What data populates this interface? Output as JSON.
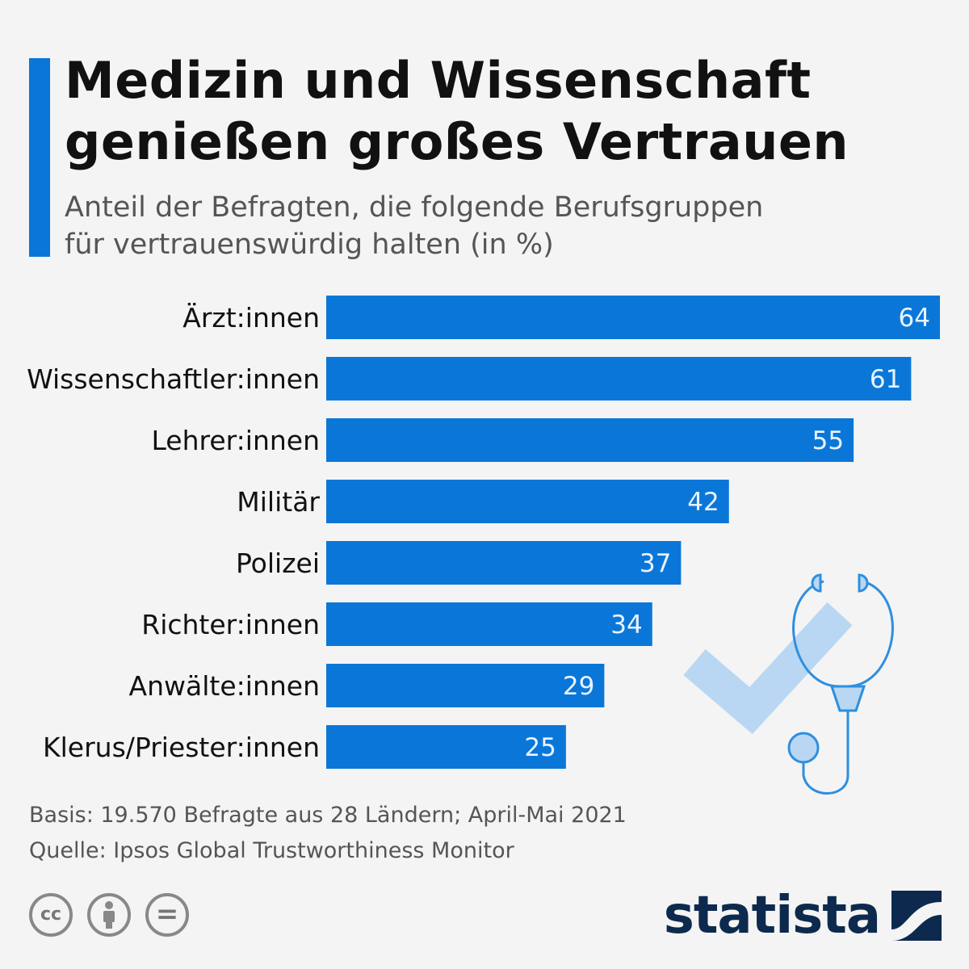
{
  "header": {
    "title_line1": "Medizin und Wissenschaft",
    "title_line2": "genießen großes Vertrauen",
    "subtitle_line1": "Anteil der Befragten, die folgende Berufsgruppen",
    "subtitle_line2": "für vertrauenswürdig halten (in %)"
  },
  "chart_data": {
    "type": "bar",
    "orientation": "horizontal",
    "title": "Medizin und Wissenschaft genießen großes Vertrauen",
    "subtitle": "Anteil der Befragten, die folgende Berufsgruppen für vertrauenswürdig halten (in %)",
    "categories": [
      "Ärzt:innen",
      "Wissenschaftler:innen",
      "Lehrer:innen",
      "Militär",
      "Polizei",
      "Richter:innen",
      "Anwälte:innen",
      "Klerus/Priester:innen"
    ],
    "values": [
      64,
      61,
      55,
      42,
      37,
      34,
      29,
      25
    ],
    "xlim": [
      0,
      64
    ],
    "grid": false,
    "data_labels": true,
    "colors": {
      "bar": "#0a77d8",
      "value_label": "#e8f3ff"
    }
  },
  "footer": {
    "basis": "Basis: 19.570 Befragte aus 28 Ländern; April-Mai 2021",
    "source": "Quelle: Ipsos Global Trustworthiness Monitor"
  },
  "licenses": {
    "cc": "cc",
    "nd": "="
  },
  "brand": {
    "name": "statista",
    "colors": {
      "accent": "#0a77d8",
      "logo": "#0d2a4e"
    }
  },
  "icons": [
    "stethoscope-icon",
    "checkmark-icon",
    "cc-license-icon",
    "by-license-icon",
    "nd-license-icon",
    "statista-logo-icon"
  ]
}
